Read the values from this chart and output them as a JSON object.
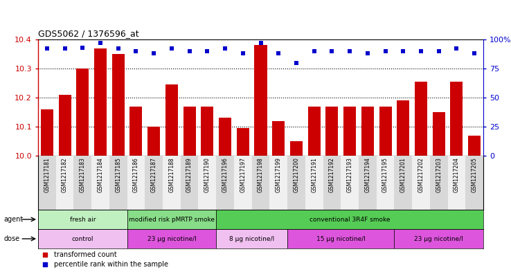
{
  "title": "GDS5062 / 1376596_at",
  "samples": [
    "GSM1217181",
    "GSM1217182",
    "GSM1217183",
    "GSM1217184",
    "GSM1217185",
    "GSM1217186",
    "GSM1217187",
    "GSM1217188",
    "GSM1217189",
    "GSM1217190",
    "GSM1217196",
    "GSM1217197",
    "GSM1217198",
    "GSM1217199",
    "GSM1217200",
    "GSM1217191",
    "GSM1217192",
    "GSM1217193",
    "GSM1217194",
    "GSM1217195",
    "GSM1217201",
    "GSM1217202",
    "GSM1217203",
    "GSM1217204",
    "GSM1217205"
  ],
  "transformed_counts": [
    10.16,
    10.21,
    10.3,
    10.37,
    10.35,
    10.17,
    10.1,
    10.245,
    10.17,
    10.17,
    10.13,
    10.095,
    10.38,
    10.12,
    10.05,
    10.17,
    10.17,
    10.17,
    10.17,
    10.17,
    10.19,
    10.255,
    10.15,
    10.255,
    10.07
  ],
  "percentile_ranks": [
    92,
    92,
    93,
    97,
    92,
    90,
    88,
    92,
    90,
    90,
    92,
    88,
    97,
    88,
    80,
    90,
    90,
    90,
    88,
    90,
    90,
    90,
    90,
    92,
    88
  ],
  "ylim_left": [
    10.0,
    10.4
  ],
  "ylim_right": [
    0,
    100
  ],
  "yticks_left": [
    10.0,
    10.1,
    10.2,
    10.3,
    10.4
  ],
  "yticks_right": [
    0,
    25,
    50,
    75,
    100
  ],
  "bar_color": "#cc0000",
  "dot_color": "#0000cc",
  "agent_regions": [
    {
      "label": "fresh air",
      "start": 0,
      "end": 5,
      "color": "#c0f0c0"
    },
    {
      "label": "modified risk pMRTP smoke",
      "start": 5,
      "end": 10,
      "color": "#88dd88"
    },
    {
      "label": "conventional 3R4F smoke",
      "start": 10,
      "end": 25,
      "color": "#55cc55"
    }
  ],
  "dose_regions": [
    {
      "label": "control",
      "start": 0,
      "end": 5,
      "color": "#f0c0f0"
    },
    {
      "label": "23 μg nicotine/l",
      "start": 5,
      "end": 10,
      "color": "#dd55dd"
    },
    {
      "label": "8 μg nicotine/l",
      "start": 10,
      "end": 14,
      "color": "#f0c0f0"
    },
    {
      "label": "15 μg nicotine/l",
      "start": 14,
      "end": 20,
      "color": "#dd55dd"
    },
    {
      "label": "23 μg nicotine/l",
      "start": 20,
      "end": 25,
      "color": "#dd55dd"
    }
  ],
  "legend_items": [
    {
      "label": "transformed count",
      "color": "#cc0000"
    },
    {
      "label": "percentile rank within the sample",
      "color": "#0000cc"
    }
  ],
  "fig_width": 7.38,
  "fig_height": 3.93,
  "dpi": 100
}
